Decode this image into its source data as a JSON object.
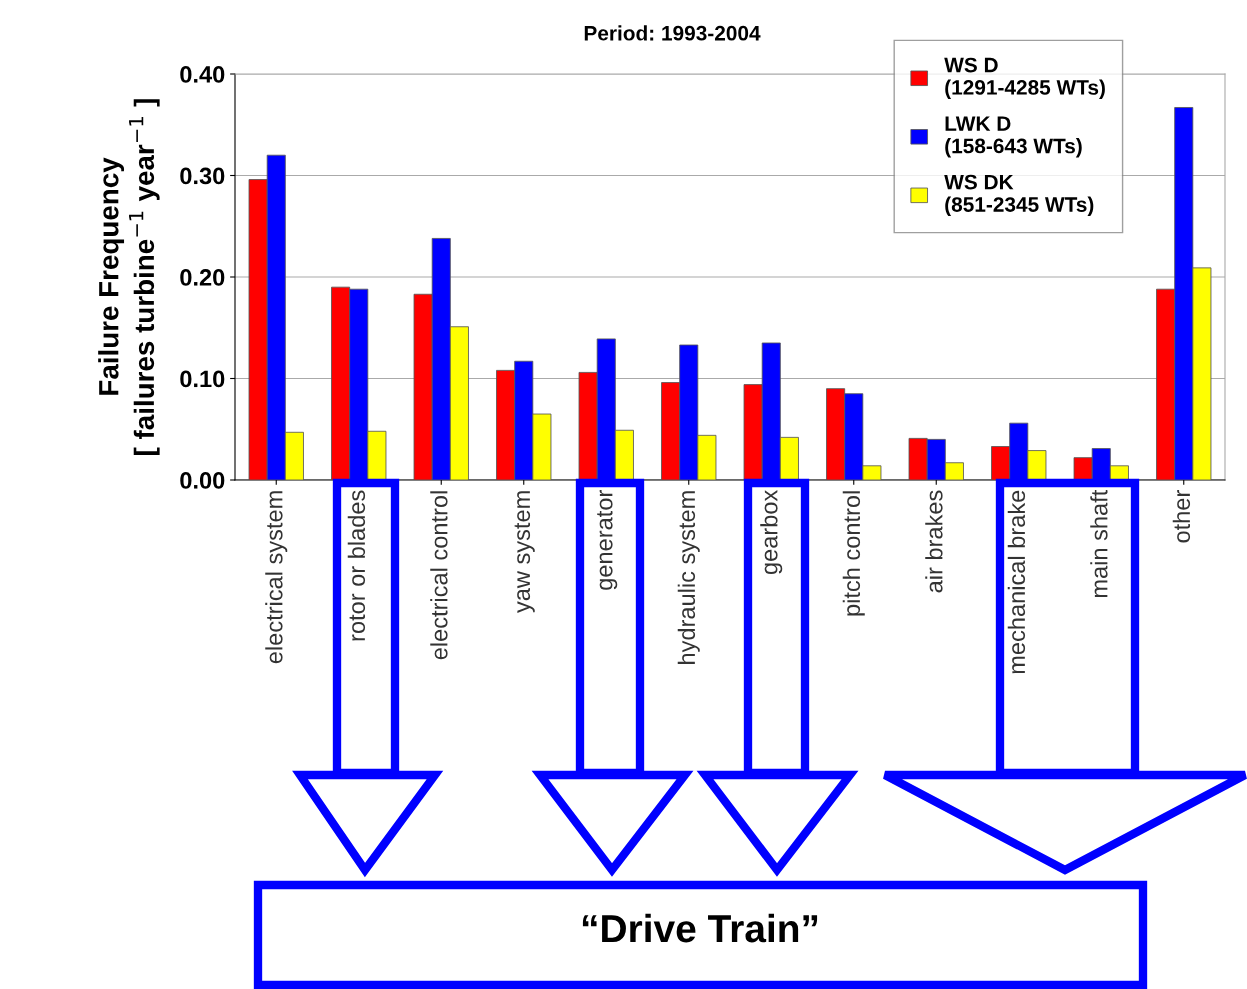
{
  "chart_data": {
    "type": "bar",
    "title": "Period: 1993-2004",
    "ylabel": "Failure Frequency\n[ failures turbine$^{−1}$ year$^{−1}$ ]",
    "categories": [
      "electrical system",
      "rotor or blades",
      "electrical control",
      "yaw system",
      "generator",
      "hydraulic system",
      "gearbox",
      "pitch control",
      "air brakes",
      "mechanical brake",
      "main shaft",
      "other"
    ],
    "series": [
      {
        "name": "WS D\n(1291-4285 WTs)",
        "color": "#ff0000",
        "values": [
          0.296,
          0.19,
          0.183,
          0.108,
          0.106,
          0.096,
          0.094,
          0.09,
          0.041,
          0.033,
          0.022,
          0.188
        ]
      },
      {
        "name": "LWK D\n(158-643 WTs)",
        "color": "#0000ff",
        "values": [
          0.32,
          0.188,
          0.238,
          0.117,
          0.139,
          0.133,
          0.135,
          0.085,
          0.04,
          0.056,
          0.031,
          0.367
        ]
      },
      {
        "name": "WS DK\n(851-2345 WTs)",
        "color": "#ffff00",
        "values": [
          0.047,
          0.048,
          0.151,
          0.065,
          0.049,
          0.044,
          0.042,
          0.014,
          0.017,
          0.029,
          0.014,
          0.209
        ]
      }
    ],
    "ylim": [
      0,
      0.4
    ],
    "yticks": [
      {
        "value": 0,
        "label": "0.00"
      },
      {
        "value": 0.1,
        "label": "0.10"
      },
      {
        "value": 0.2,
        "label": "0.20"
      },
      {
        "value": 0.3,
        "label": "0.30"
      },
      {
        "value": 0.4,
        "label": "0.40"
      }
    ],
    "grid": "y",
    "legend": "top right",
    "annotations": [
      "“Drive Train”"
    ]
  }
}
